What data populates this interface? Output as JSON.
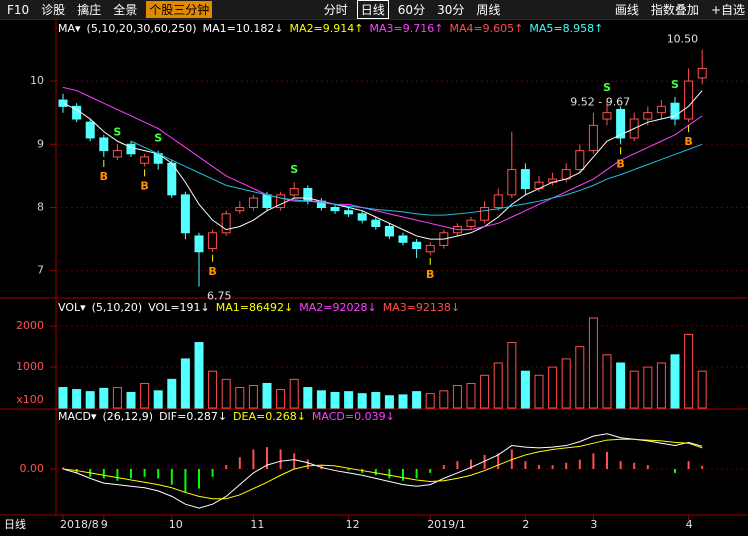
{
  "toolbar": {
    "left": [
      "F10",
      "诊股",
      "擒庄",
      "全景"
    ],
    "active_tab": "个股三分钟",
    "periods": [
      "分时",
      "日线",
      "60分",
      "30分",
      "周线"
    ],
    "selected_period": 1,
    "right": [
      "画线",
      "指数叠加",
      "+自选"
    ]
  },
  "footer_label": "日线",
  "chart_data": [
    {
      "type": "candlestick",
      "header": [
        {
          "text": "MA▾",
          "color": "#ffffff"
        },
        {
          "text": "(5,10,20,30,60,250)",
          "color": "#ffffff"
        },
        {
          "text": "MA1=10.182↓",
          "color": "#ffffff"
        },
        {
          "text": "MA2=9.914↑",
          "color": "#ffff00"
        },
        {
          "text": "MA3=9.716↑",
          "color": "#ff40ff"
        },
        {
          "text": "MA4=9.605↑",
          "color": "#ff5050"
        },
        {
          "text": "MA5=8.958↑",
          "color": "#40ffff"
        }
      ],
      "categories": [
        "2018/8",
        null,
        null,
        "9",
        null,
        null,
        null,
        null,
        "10",
        null,
        null,
        null,
        null,
        null,
        "11",
        null,
        null,
        null,
        null,
        null,
        null,
        "12",
        null,
        null,
        null,
        null,
        null,
        "2019/1",
        null,
        null,
        null,
        null,
        null,
        null,
        "2",
        null,
        null,
        null,
        null,
        "3",
        null,
        null,
        null,
        null,
        null,
        null,
        "4",
        null
      ],
      "open": [
        9.7,
        9.6,
        9.35,
        9.1,
        8.8,
        9.0,
        8.7,
        8.85,
        8.7,
        8.2,
        7.55,
        7.35,
        7.6,
        7.95,
        8.0,
        8.2,
        8.0,
        8.2,
        8.3,
        8.1,
        8.0,
        7.95,
        7.9,
        7.8,
        7.7,
        7.55,
        7.45,
        7.3,
        7.4,
        7.6,
        7.7,
        7.8,
        8.0,
        8.2,
        8.6,
        8.3,
        8.4,
        8.45,
        8.6,
        8.9,
        9.4,
        9.55,
        9.1,
        9.4,
        9.5,
        9.65,
        9.4,
        10.05
      ],
      "high": [
        9.8,
        9.65,
        9.4,
        9.15,
        9.0,
        9.05,
        8.85,
        8.9,
        8.75,
        8.25,
        7.6,
        7.65,
        7.95,
        8.1,
        8.2,
        8.25,
        8.25,
        8.4,
        8.35,
        8.15,
        8.05,
        8.0,
        7.95,
        7.85,
        7.75,
        7.6,
        7.5,
        7.45,
        7.65,
        7.75,
        7.85,
        8.1,
        8.3,
        9.2,
        8.7,
        8.5,
        8.55,
        8.7,
        9.0,
        9.5,
        9.7,
        9.6,
        9.5,
        9.6,
        9.7,
        9.75,
        10.2,
        10.5
      ],
      "low": [
        9.5,
        9.35,
        9.05,
        8.8,
        8.75,
        8.8,
        8.65,
        8.6,
        8.15,
        7.5,
        6.75,
        7.3,
        7.55,
        7.9,
        7.95,
        7.95,
        7.95,
        8.15,
        8.05,
        7.95,
        7.9,
        7.85,
        7.75,
        7.65,
        7.5,
        7.4,
        7.2,
        7.25,
        7.35,
        7.55,
        7.65,
        7.75,
        7.95,
        8.15,
        8.2,
        8.25,
        8.35,
        8.4,
        8.55,
        8.85,
        9.3,
        9.0,
        9.05,
        9.3,
        9.4,
        9.3,
        9.35,
        9.95
      ],
      "close": [
        9.6,
        9.4,
        9.1,
        8.9,
        8.9,
        8.85,
        8.8,
        8.7,
        8.2,
        7.6,
        7.3,
        7.6,
        7.9,
        8.0,
        8.15,
        8.0,
        8.2,
        8.3,
        8.1,
        8.0,
        7.95,
        7.9,
        7.8,
        7.7,
        7.55,
        7.45,
        7.35,
        7.4,
        7.6,
        7.7,
        7.8,
        8.0,
        8.2,
        8.6,
        8.3,
        8.4,
        8.45,
        8.6,
        8.9,
        9.3,
        9.5,
        9.1,
        9.4,
        9.5,
        9.6,
        9.4,
        10.0,
        10.2
      ],
      "up_color": "#ff5050",
      "down_color": "#54ffff",
      "series": [
        {
          "color": "#ffffff",
          "values": [
            9.65,
            9.55,
            9.4,
            9.2,
            9.05,
            8.95,
            8.9,
            8.85,
            8.7,
            8.4,
            8.05,
            7.8,
            7.65,
            7.7,
            7.8,
            7.95,
            8.05,
            8.15,
            8.15,
            8.1,
            8.05,
            8.0,
            7.95,
            7.85,
            7.75,
            7.65,
            7.55,
            7.5,
            7.5,
            7.55,
            7.6,
            7.7,
            7.85,
            8.05,
            8.2,
            8.3,
            8.4,
            8.45,
            8.55,
            8.8,
            9.05,
            9.15,
            9.25,
            9.35,
            9.4,
            9.45,
            9.6,
            9.85
          ]
        },
        {
          "color": "#ff40ff",
          "values": [
            9.9,
            9.85,
            9.75,
            9.65,
            9.55,
            9.45,
            9.35,
            9.25,
            9.1,
            8.95,
            8.8,
            8.65,
            8.5,
            8.4,
            8.3,
            8.2,
            8.15,
            8.1,
            8.1,
            8.1,
            8.05,
            8.05,
            8.0,
            7.95,
            7.9,
            7.85,
            7.8,
            7.75,
            7.7,
            7.65,
            7.65,
            7.7,
            7.75,
            7.85,
            7.95,
            8.05,
            8.15,
            8.25,
            8.35,
            8.45,
            8.6,
            8.75,
            8.85,
            8.95,
            9.05,
            9.15,
            9.3,
            9.45
          ]
        },
        {
          "color": "#20c0e0",
          "values": [
            null,
            null,
            null,
            null,
            null,
            9.05,
            8.95,
            8.85,
            8.75,
            8.65,
            8.55,
            8.45,
            8.35,
            8.3,
            8.25,
            8.2,
            8.15,
            8.12,
            8.1,
            8.08,
            8.05,
            8.02,
            8.0,
            7.97,
            7.95,
            7.93,
            7.9,
            7.88,
            7.88,
            7.9,
            7.92,
            7.95,
            7.98,
            8.02,
            8.06,
            8.1,
            8.15,
            8.2,
            8.27,
            8.35,
            8.45,
            8.52,
            8.6,
            8.68,
            8.76,
            8.84,
            8.92,
            9.0
          ]
        }
      ],
      "ylim": [
        6.6,
        10.65
      ],
      "yticks": [
        7,
        8,
        9,
        10
      ],
      "grid": true,
      "annotations": [
        {
          "text": "6.75",
          "index": 10
        },
        {
          "text": "10.50",
          "index": 47
        },
        {
          "text": "9.52 - 9.67",
          "index": 42
        }
      ],
      "signals": [
        {
          "label": "B",
          "index": 3
        },
        {
          "label": "S",
          "index": 4
        },
        {
          "label": "B",
          "index": 6
        },
        {
          "label": "S",
          "index": 7
        },
        {
          "label": "B",
          "index": 11
        },
        {
          "label": "S",
          "index": 17
        },
        {
          "label": "B",
          "index": 27
        },
        {
          "label": "S",
          "index": 40
        },
        {
          "label": "B",
          "index": 41
        },
        {
          "label": "S",
          "index": 45
        },
        {
          "label": "B",
          "index": 46
        }
      ]
    },
    {
      "type": "bar",
      "header": [
        {
          "text": "VOL▾",
          "color": "#ffffff"
        },
        {
          "text": "(5,10,20)",
          "color": "#ffffff"
        },
        {
          "text": "VOL=191↓",
          "color": "#ffffff"
        },
        {
          "text": "MA1=86492↓",
          "color": "#ffff00"
        },
        {
          "text": "MA2=92028↓",
          "color": "#ff40ff"
        },
        {
          "text": "MA3=92138↓",
          "color": "#ff5050"
        }
      ],
      "values": [
        500,
        450,
        400,
        480,
        500,
        380,
        600,
        420,
        700,
        1200,
        1600,
        900,
        700,
        500,
        550,
        600,
        450,
        700,
        500,
        420,
        380,
        400,
        350,
        380,
        300,
        320,
        400,
        350,
        420,
        550,
        600,
        800,
        1100,
        1600,
        900,
        800,
        1000,
        1200,
        1500,
        2200,
        1300,
        1100,
        900,
        1000,
        1100,
        1300,
        1800,
        900
      ],
      "ylim": [
        0,
        2200
      ],
      "yticks": [
        1000,
        2000
      ],
      "unit_label": "x100",
      "grid": true
    },
    {
      "type": "macd",
      "header": [
        {
          "text": "MACD▾",
          "color": "#ffffff"
        },
        {
          "text": "(26,12,9)",
          "color": "#ffffff"
        },
        {
          "text": "DIF=0.287↓",
          "color": "#ffffff"
        },
        {
          "text": "DEA=0.268↓",
          "color": "#ffff00"
        },
        {
          "text": "MACD=0.039↓",
          "color": "#ff40ff"
        }
      ],
      "values": [
        0.02,
        -0.05,
        -0.1,
        -0.12,
        -0.15,
        -0.12,
        -0.1,
        -0.12,
        -0.2,
        -0.3,
        -0.25,
        -0.1,
        0.05,
        0.15,
        0.25,
        0.28,
        0.25,
        0.2,
        0.12,
        0.05,
        0.0,
        -0.02,
        -0.05,
        -0.08,
        -0.12,
        -0.15,
        -0.12,
        -0.05,
        0.05,
        0.1,
        0.12,
        0.18,
        0.2,
        0.25,
        0.1,
        0.05,
        0.05,
        0.08,
        0.12,
        0.2,
        0.22,
        0.1,
        0.08,
        0.05,
        0.0,
        -0.05,
        0.1,
        0.04
      ],
      "pos_color": "#ff5050",
      "neg_color": "#00ff00",
      "series": [
        {
          "color": "#ffffff",
          "values": [
            0.0,
            -0.05,
            -0.12,
            -0.18,
            -0.2,
            -0.22,
            -0.24,
            -0.28,
            -0.35,
            -0.45,
            -0.5,
            -0.45,
            -0.35,
            -0.2,
            -0.05,
            0.05,
            0.1,
            0.12,
            0.08,
            0.02,
            -0.02,
            -0.05,
            -0.08,
            -0.12,
            -0.16,
            -0.2,
            -0.22,
            -0.2,
            -0.12,
            -0.05,
            0.02,
            0.1,
            0.18,
            0.3,
            0.28,
            0.27,
            0.28,
            0.3,
            0.35,
            0.42,
            0.45,
            0.4,
            0.38,
            0.36,
            0.33,
            0.3,
            0.34,
            0.29
          ]
        },
        {
          "color": "#ffff00",
          "values": [
            0.0,
            -0.02,
            -0.05,
            -0.08,
            -0.11,
            -0.14,
            -0.17,
            -0.2,
            -0.24,
            -0.3,
            -0.35,
            -0.38,
            -0.38,
            -0.33,
            -0.25,
            -0.17,
            -0.08,
            0.0,
            0.04,
            0.05,
            0.04,
            0.01,
            -0.02,
            -0.05,
            -0.08,
            -0.11,
            -0.14,
            -0.16,
            -0.15,
            -0.12,
            -0.08,
            -0.02,
            0.05,
            0.12,
            0.18,
            0.22,
            0.25,
            0.27,
            0.29,
            0.33,
            0.37,
            0.38,
            0.38,
            0.37,
            0.36,
            0.34,
            0.33,
            0.27
          ]
        }
      ],
      "ylim": [
        -0.55,
        0.55
      ],
      "yticks": [
        {
          "value": 0,
          "label": "0.00"
        }
      ],
      "grid": true
    }
  ]
}
